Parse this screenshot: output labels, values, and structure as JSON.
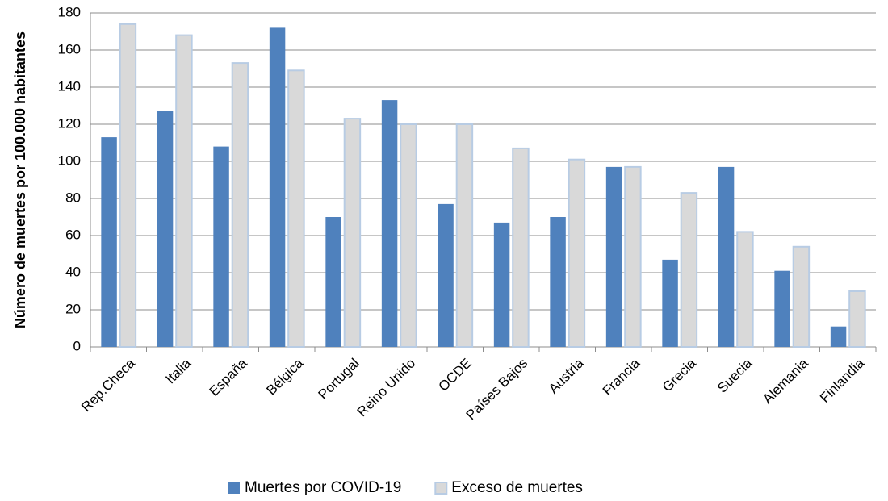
{
  "chart_data": {
    "type": "bar",
    "ylabel": "Número de muertes por 100.000 habitantes",
    "categories": [
      "Rep.Checa",
      "Italia",
      "España",
      "Bélgica",
      "Portugal",
      "Reino Unido",
      "OCDE",
      "Países Bajos",
      "Austria",
      "Francia",
      "Grecia",
      "Suecia",
      "Alemania",
      "Finlandia"
    ],
    "series": [
      {
        "name": "Muertes por COVID-19",
        "color": "#4f81bd",
        "values": [
          113,
          127,
          108,
          172,
          70,
          133,
          77,
          67,
          70,
          97,
          47,
          97,
          41,
          11
        ]
      },
      {
        "name": "Exceso de muertes",
        "color": "#d9d9d9",
        "values": [
          174,
          168,
          153,
          149,
          123,
          120,
          120,
          107,
          101,
          97,
          83,
          62,
          54,
          30
        ]
      }
    ],
    "ylim": [
      0,
      180
    ],
    "yticks": [
      0,
      20,
      40,
      60,
      80,
      100,
      120,
      140,
      160,
      180
    ],
    "grid": true,
    "legend": "bottom"
  }
}
